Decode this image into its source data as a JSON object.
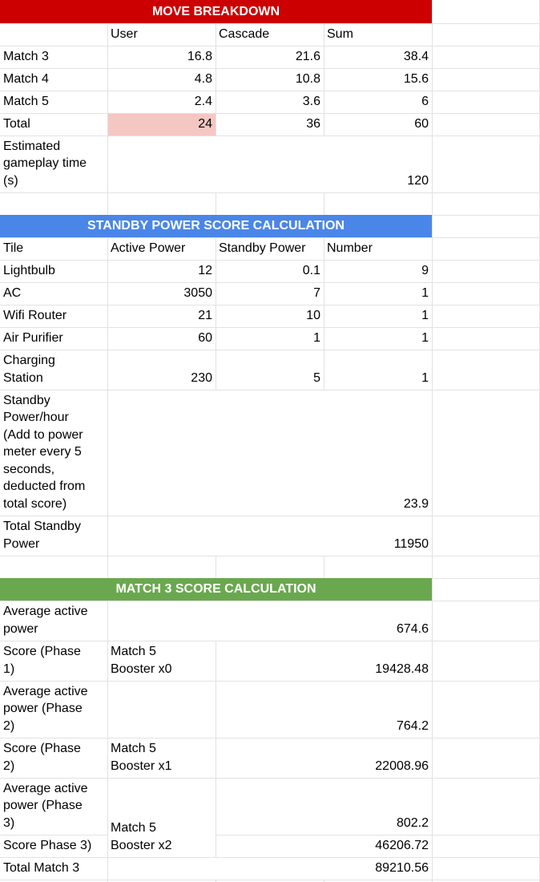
{
  "colors": {
    "move_header": "#cc0000",
    "standby_header": "#4a86e8",
    "match_header": "#6aa84f",
    "highlight": "#f4c7c3"
  },
  "move": {
    "title": "MOVE BREAKDOWN",
    "col_user": "User",
    "col_cascade": "Cascade",
    "col_sum": "Sum",
    "rows": [
      {
        "label": "Match 3",
        "user": "16.8",
        "cascade": "21.6",
        "sum": "38.4"
      },
      {
        "label": "Match 4",
        "user": "4.8",
        "cascade": "10.8",
        "sum": "15.6"
      },
      {
        "label": "Match 5",
        "user": "2.4",
        "cascade": "3.6",
        "sum": "6"
      },
      {
        "label": "Total",
        "user": "24",
        "cascade": "36",
        "sum": "60"
      }
    ],
    "time_label": "Estimated\ngameplay time\n(s)",
    "time_value": "120"
  },
  "standby": {
    "title": "STANDBY POWER SCORE CALCULATION",
    "col_tile": "Tile",
    "col_active": "Active Power",
    "col_standby": "Standby Power",
    "col_number": "Number",
    "rows": [
      {
        "tile": "Lightbulb",
        "active": "12",
        "standby": "0.1",
        "number": "9"
      },
      {
        "tile": "AC",
        "active": "3050",
        "standby": "7",
        "number": "1"
      },
      {
        "tile": "Wifi Router",
        "active": "21",
        "standby": "10",
        "number": "1"
      },
      {
        "tile": "Air Purifier",
        "active": "60",
        "standby": "1",
        "number": "1"
      },
      {
        "tile": "Charging\nStation",
        "active": "230",
        "standby": "5",
        "number": "1"
      }
    ],
    "per_hour_label": "Standby\nPower/hour\n(Add to power\nmeter every 5\nseconds,\ndeducted from\ntotal score)",
    "per_hour_value": "23.9",
    "total_label": "Total Standby\nPower",
    "total_value": "11950"
  },
  "match3": {
    "title": "MATCH 3 SCORE CALCULATION",
    "avg_label": "Average active\npower",
    "avg_value": "674.6",
    "score1_label": "Score (Phase\n1)",
    "booster0": "Match 5\nBooster x0",
    "score1_value": "19428.48",
    "avg2_label": "Average active\npower (Phase\n2)",
    "avg2_value": "764.2",
    "score2_label": "Score (Phase\n2)",
    "booster1": "Match 5\nBooster x1",
    "score2_value": "22008.96",
    "avg3_label": "Average active\npower (Phase\n3)",
    "avg3_value": "802.2",
    "score3_label": "Score Phase 3)",
    "booster2": "Match 5\nBooster x2",
    "score3_value": "46206.72",
    "total_label": "Total Match 3",
    "total_value": "89210.56"
  }
}
